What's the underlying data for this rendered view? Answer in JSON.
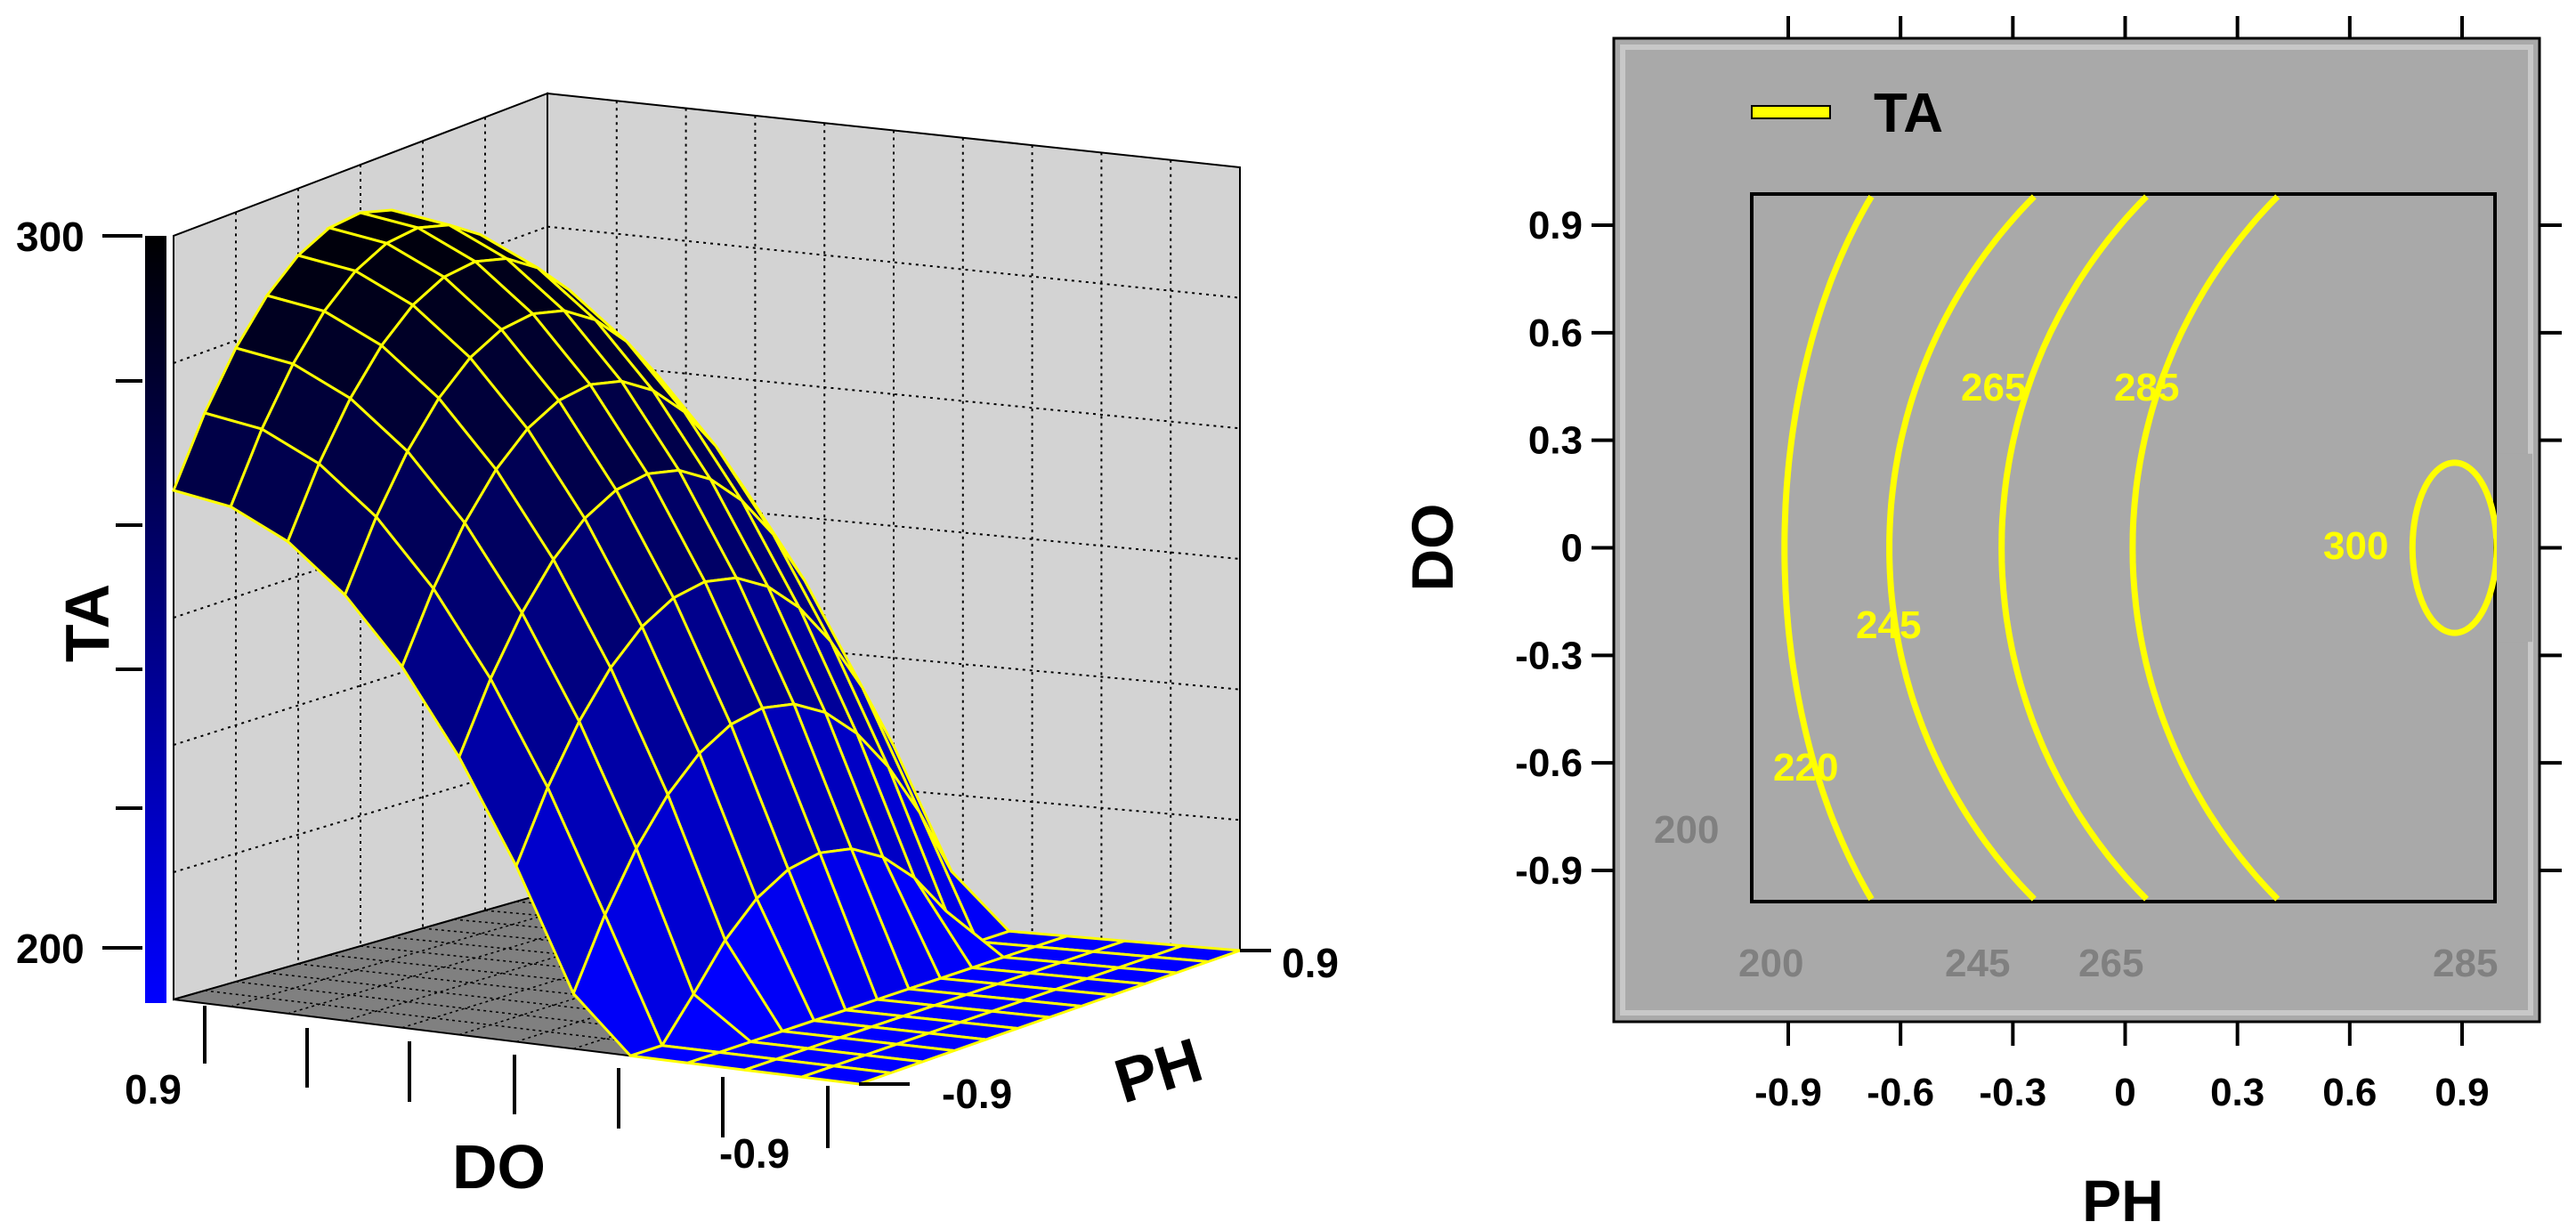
{
  "chart_data": [
    {
      "type": "surface",
      "zlabel": "TA",
      "xlabel": "DO",
      "ylabel": "PH",
      "z_ticks": [
        "300",
        "200"
      ],
      "zlim": [
        200,
        300
      ],
      "do_ticks": [
        "0.9",
        "-0.9"
      ],
      "ph_ticks": [
        "0.9",
        "-0.9"
      ],
      "do_range": [
        -0.9,
        0.9
      ],
      "ph_range": [
        -0.9,
        0.9
      ],
      "surface_grid_do": [
        -0.9,
        -0.75,
        -0.6,
        -0.45,
        -0.3,
        -0.15,
        0,
        0.15,
        0.3,
        0.45,
        0.6,
        0.75,
        0.9
      ],
      "surface_grid_ph": [
        -0.9,
        -0.75,
        -0.6,
        -0.45,
        -0.3,
        -0.15,
        0,
        0.15,
        0.3,
        0.45,
        0.6,
        0.75,
        0.9
      ],
      "colormap": [
        "#0000ff",
        "#000000"
      ],
      "mesh_color": "#ffff00",
      "wall_color": "#d3d3d3",
      "floor_color": "#808080"
    },
    {
      "type": "contour",
      "legend": "TA",
      "legend_position": "top-left",
      "xlabel": "PH",
      "ylabel": "DO",
      "x_ticks": [
        "-0.9",
        "-0.6",
        "-0.3",
        "0",
        "0.3",
        "0.6",
        "0.9"
      ],
      "y_ticks": [
        "0.9",
        "0.6",
        "0.3",
        "0",
        "-0.3",
        "-0.6",
        "-0.9"
      ],
      "xlim": [
        -0.9,
        0.9
      ],
      "ylim": [
        -0.9,
        0.9
      ],
      "contour_levels": [
        {
          "level": "220",
          "label": "220",
          "ph_at_do0": -0.91
        },
        {
          "level": "245",
          "label": "245",
          "ph_at_do0": -0.63
        },
        {
          "level": "265",
          "label": "265",
          "ph_at_do0": -0.33
        },
        {
          "level": "285",
          "label": "285",
          "ph_at_do0": 0.02
        }
      ],
      "closed_contour": {
        "level": "300",
        "label": "300",
        "center_ph": 0.88,
        "center_do": 0.0,
        "radius": 0.25
      },
      "edge_labels": [
        "200",
        "200",
        "245",
        "265",
        "285"
      ],
      "background": "#a9a9a9",
      "line_color": "#ffff00"
    }
  ]
}
